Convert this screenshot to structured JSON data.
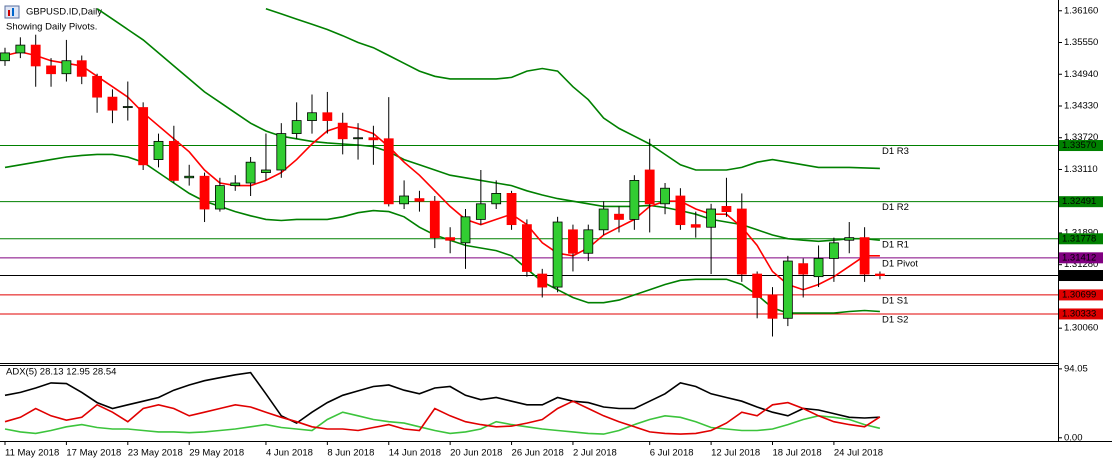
{
  "chart_data": [
    {
      "type": "candlestick",
      "title": "GBPUSD.ID,Daily",
      "subtitle": "Showing Daily Pivots.",
      "categories": [
        "11 May 2018",
        null,
        null,
        null,
        "17 May 2018",
        null,
        null,
        null,
        "23 May 2018",
        null,
        null,
        null,
        "29 May 2018",
        null,
        null,
        null,
        null,
        "4 Jun 2018",
        null,
        null,
        null,
        "8 Jun 2018",
        null,
        null,
        null,
        "14 Jun 2018",
        null,
        null,
        null,
        "20 Jun 2018",
        null,
        null,
        null,
        "26 Jun 2018",
        null,
        null,
        null,
        "2 Jul 2018",
        null,
        null,
        null,
        null,
        "6 Jul 2018",
        null,
        null,
        null,
        "12 Jul 2018",
        null,
        null,
        null,
        "18 Jul 2018",
        null,
        null,
        null,
        "24 Jul 2018",
        null,
        null,
        null
      ],
      "open": [
        1.352,
        1.3535,
        1.355,
        1.351,
        1.3495,
        1.352,
        1.349,
        1.345,
        1.343,
        1.343,
        1.333,
        1.3365,
        1.3295,
        1.3298,
        1.3235,
        1.328,
        1.3285,
        1.3305,
        1.331,
        1.338,
        1.3405,
        1.342,
        1.34,
        1.337,
        1.3372,
        1.337,
        1.3245,
        1.3255,
        1.325,
        1.318,
        1.317,
        1.3215,
        1.3245,
        1.3265,
        1.3205,
        1.311,
        1.3085,
        1.3195,
        1.315,
        1.3195,
        1.3225,
        1.3215,
        1.331,
        1.3245,
        1.326,
        1.3205,
        1.32,
        1.324,
        1.3235,
        1.311,
        1.307,
        1.3025,
        1.313,
        1.3105,
        1.314,
        1.3175,
        1.318,
        1.311
      ],
      "high": [
        1.3545,
        1.3565,
        1.357,
        1.3525,
        1.356,
        1.353,
        1.3495,
        1.3465,
        1.348,
        1.344,
        1.338,
        1.3395,
        1.332,
        1.3305,
        1.3295,
        1.33,
        1.3335,
        1.338,
        1.34,
        1.344,
        1.3455,
        1.346,
        1.342,
        1.34,
        1.3395,
        1.345,
        1.329,
        1.327,
        1.326,
        1.32,
        1.3235,
        1.331,
        1.329,
        1.327,
        1.3215,
        1.312,
        1.322,
        1.3205,
        1.3205,
        1.325,
        1.324,
        1.33,
        1.337,
        1.3285,
        1.3275,
        1.323,
        1.3245,
        1.3295,
        1.3265,
        1.3115,
        1.3085,
        1.3145,
        1.314,
        1.3165,
        1.318,
        1.321,
        1.32,
        1.3115
      ],
      "low": [
        1.351,
        1.3525,
        1.347,
        1.347,
        1.348,
        1.3475,
        1.342,
        1.34,
        1.3405,
        1.331,
        1.3315,
        1.3285,
        1.328,
        1.321,
        1.323,
        1.327,
        1.326,
        1.329,
        1.3295,
        1.337,
        1.338,
        1.338,
        1.334,
        1.333,
        1.332,
        1.324,
        1.3235,
        1.323,
        1.316,
        1.315,
        1.312,
        1.3205,
        1.3235,
        1.3195,
        1.3105,
        1.3065,
        1.3075,
        1.3115,
        1.3135,
        1.3185,
        1.319,
        1.3195,
        1.319,
        1.3225,
        1.3195,
        1.318,
        1.311,
        1.322,
        1.3095,
        1.3025,
        1.299,
        1.301,
        1.3065,
        1.3085,
        1.3095,
        1.315,
        1.3095,
        1.31
      ],
      "close": [
        1.3535,
        1.355,
        1.351,
        1.3495,
        1.352,
        1.349,
        1.345,
        1.3425,
        1.3432,
        1.332,
        1.3365,
        1.329,
        1.3298,
        1.3235,
        1.328,
        1.3285,
        1.3325,
        1.331,
        1.338,
        1.3405,
        1.342,
        1.3405,
        1.337,
        1.3372,
        1.3368,
        1.3245,
        1.326,
        1.325,
        1.318,
        1.3175,
        1.322,
        1.3245,
        1.3265,
        1.3205,
        1.3115,
        1.3085,
        1.321,
        1.315,
        1.3195,
        1.3235,
        1.3215,
        1.329,
        1.3245,
        1.3275,
        1.3205,
        1.32,
        1.3235,
        1.323,
        1.311,
        1.3065,
        1.3025,
        1.3135,
        1.311,
        1.314,
        1.317,
        1.318,
        1.311,
        1.3107
      ],
      "up_color": "#32cd32",
      "down_color": "#ff0000",
      "wick_color": "#000000",
      "series": [
        {
          "color": "#008000",
          "values": [
            null,
            null,
            null,
            null,
            null,
            null,
            null,
            null,
            null,
            null,
            null,
            null,
            null,
            null,
            null,
            null,
            null,
            1.362,
            1.361,
            1.36,
            1.359,
            1.358,
            1.3568,
            1.3555,
            1.3545,
            1.353,
            1.3515,
            1.35,
            1.349,
            1.3485,
            1.3485,
            1.3485,
            1.3485,
            1.3488,
            1.35,
            1.3505,
            1.35,
            1.347,
            1.3445,
            1.341,
            1.339,
            1.3375,
            1.336,
            1.334,
            1.332,
            1.331,
            1.331,
            1.331,
            1.3315,
            1.3325,
            1.333,
            1.3325,
            1.332,
            1.3315,
            1.3315,
            1.3315,
            1.3314,
            1.3313
          ]
        },
        {
          "color": "#008000",
          "values": [
            null,
            null,
            null,
            null,
            null,
            null,
            1.362,
            1.36,
            1.358,
            1.356,
            1.3535,
            1.351,
            1.3485,
            1.346,
            1.344,
            1.342,
            1.34,
            1.3385,
            1.3375,
            1.337,
            1.3365,
            1.3362,
            1.336,
            1.3358,
            1.3355,
            1.3345,
            1.333,
            1.332,
            1.331,
            1.33,
            1.3295,
            1.329,
            1.3285,
            1.328,
            1.327,
            1.3262,
            1.3255,
            1.325,
            1.3245,
            1.324,
            1.324,
            1.324,
            1.3242,
            1.3238,
            1.3232,
            1.3225,
            1.3215,
            1.321,
            1.3205,
            1.3195,
            1.3185,
            1.3178,
            1.3175,
            1.3173,
            1.3175,
            1.3178,
            1.3178,
            1.3175
          ]
        },
        {
          "color": "#008000",
          "values": [
            1.3315,
            1.332,
            1.3325,
            1.333,
            1.3335,
            1.3338,
            1.334,
            1.334,
            1.3335,
            1.3325,
            1.3305,
            1.3285,
            1.3265,
            1.325,
            1.324,
            1.323,
            1.3222,
            1.3215,
            1.3213,
            1.3215,
            1.3215,
            1.3215,
            1.322,
            1.3228,
            1.3232,
            1.323,
            1.322,
            1.32,
            1.3185,
            1.3175,
            1.3165,
            1.316,
            1.3155,
            1.3145,
            1.312,
            1.3095,
            1.308,
            1.3065,
            1.3055,
            1.3055,
            1.306,
            1.307,
            1.308,
            1.309,
            1.3098,
            1.31,
            1.31,
            1.31,
            1.309,
            1.307,
            1.3045,
            1.3035,
            1.3035,
            1.3035,
            1.3035,
            1.3038,
            1.304,
            1.3038
          ]
        },
        {
          "color": "#ff0000",
          "values": [
            1.353,
            1.3537,
            1.353,
            1.352,
            1.3515,
            1.351,
            1.349,
            1.347,
            1.345,
            1.342,
            1.3395,
            1.337,
            1.3345,
            1.331,
            1.3285,
            1.328,
            1.328,
            1.329,
            1.3305,
            1.333,
            1.336,
            1.3385,
            1.3395,
            1.339,
            1.338,
            1.3355,
            1.3325,
            1.33,
            1.327,
            1.324,
            1.3215,
            1.3205,
            1.3215,
            1.3225,
            1.3205,
            1.317,
            1.315,
            1.3145,
            1.316,
            1.3185,
            1.32,
            1.3215,
            1.324,
            1.325,
            1.325,
            1.3235,
            1.3225,
            1.3225,
            1.32,
            1.3165,
            1.3115,
            1.309,
            1.308,
            1.309,
            1.3105,
            1.3125,
            1.3145,
            1.3145
          ]
        }
      ],
      "ylim": [
        1.2941,
        1.3629
      ],
      "yticks": [
        {
          "value": 1.3616,
          "label": "1.36160"
        },
        {
          "value": 1.3555,
          "label": "1.35550"
        },
        {
          "value": 1.3494,
          "label": "1.34940"
        },
        {
          "value": 1.3433,
          "label": "1.34330"
        },
        {
          "value": 1.3372,
          "label": "1.33720"
        },
        {
          "value": 1.3311,
          "label": "1.33110"
        },
        {
          "value": 1.3189,
          "label": "1.31890"
        },
        {
          "value": 1.3128,
          "label": "1.31280"
        },
        {
          "value": 1.3006,
          "label": "1.30060"
        }
      ],
      "pivots": {
        "names": [
          "D1 R3",
          "D1 R2",
          "D1 R1",
          "D1 Pivot",
          "D1 S1",
          "D1 S2"
        ],
        "values": [
          1.3357,
          1.32491,
          1.31778,
          1.31412,
          1.30699,
          1.30333
        ],
        "value_labels": [
          "1.33570",
          "1.32491",
          "1.31778",
          "1.31412",
          "1.30699",
          "1.30333"
        ],
        "colors": [
          "#008000",
          "#008000",
          "#008000",
          "#800080",
          "#e00000",
          "#e00000"
        ]
      },
      "current_price": {
        "value": 1.31072,
        "color": "#000000"
      }
    },
    {
      "type": "line",
      "title": "ADX(5) 28.13 12.95 28.54",
      "series": [
        {
          "color": "#000000",
          "values": [
            58,
            62,
            68,
            75,
            74,
            62,
            48,
            40,
            45,
            50,
            55,
            65,
            72,
            78,
            82,
            86,
            89,
            60,
            30,
            20,
            35,
            48,
            58,
            64,
            70,
            72,
            65,
            60,
            68,
            70,
            58,
            52,
            55,
            50,
            45,
            45,
            55,
            50,
            48,
            42,
            40,
            40,
            50,
            60,
            75,
            70,
            60,
            55,
            50,
            42,
            35,
            30,
            40,
            38,
            33,
            28,
            27,
            28.13
          ]
        },
        {
          "color": "#3cc43c",
          "values": [
            12,
            8,
            6,
            10,
            15,
            18,
            14,
            12,
            12,
            10,
            8,
            8,
            7,
            8,
            10,
            12,
            15,
            18,
            14,
            12,
            10,
            25,
            35,
            30,
            25,
            22,
            20,
            15,
            10,
            6,
            8,
            12,
            22,
            18,
            15,
            12,
            10,
            8,
            6,
            5,
            10,
            18,
            25,
            30,
            28,
            22,
            14,
            12,
            10,
            10,
            12,
            18,
            25,
            30,
            28,
            25,
            18,
            12.95
          ]
        },
        {
          "color": "#e00000",
          "values": [
            22,
            28,
            40,
            30,
            24,
            28,
            45,
            35,
            22,
            40,
            45,
            40,
            30,
            35,
            40,
            45,
            42,
            35,
            28,
            22,
            15,
            12,
            12,
            10,
            14,
            18,
            12,
            10,
            40,
            30,
            22,
            18,
            15,
            16,
            20,
            25,
            40,
            50,
            40,
            30,
            22,
            15,
            8,
            6,
            5,
            6,
            10,
            20,
            35,
            30,
            45,
            48,
            40,
            30,
            22,
            18,
            15,
            28.54
          ]
        }
      ],
      "ylim": [
        -3,
        98
      ],
      "yticks": [
        94.05,
        {
          "value": 0,
          "label": "0.00"
        }
      ]
    }
  ]
}
